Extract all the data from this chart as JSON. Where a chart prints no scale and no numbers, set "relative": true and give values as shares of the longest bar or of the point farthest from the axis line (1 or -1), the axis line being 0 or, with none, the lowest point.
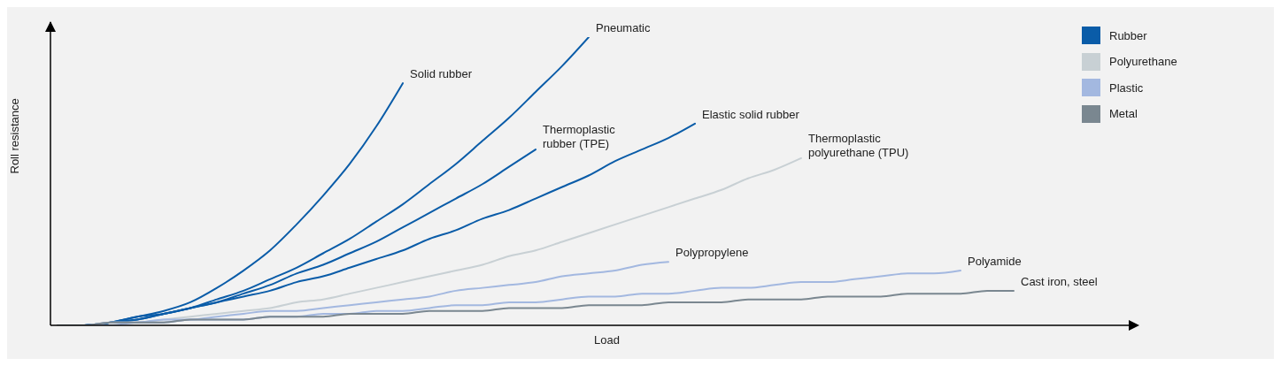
{
  "chart_data": {
    "type": "line",
    "relative": true,
    "xlabel": "Load",
    "ylabel": "Roll resistance",
    "categories": [
      null,
      null,
      null,
      null,
      null,
      null,
      null,
      null,
      null,
      null,
      null,
      null,
      null,
      null,
      null,
      null,
      null,
      null,
      null,
      null,
      null,
      null,
      null,
      null,
      null,
      null,
      null,
      null,
      null,
      null,
      null,
      null,
      null,
      null,
      null,
      null,
      null,
      null,
      null,
      null,
      null
    ],
    "series": [
      {
        "name": "Solid rubber",
        "color": "#0a5ca8",
        "values": [
          0,
          0,
          0.01,
          0.03,
          0.05,
          0.08,
          0.13,
          0.19,
          0.26,
          0.35,
          0.45,
          0.56,
          0.69,
          0.84,
          null,
          null,
          null,
          null,
          null,
          null,
          null,
          null,
          null,
          null,
          null,
          null,
          null,
          null,
          null,
          null,
          null,
          null,
          null,
          null,
          null,
          null,
          null,
          null,
          null,
          null,
          null
        ]
      },
      {
        "name": "Pneumatic",
        "color": "#0a5ca8",
        "values": [
          0,
          0,
          0.01,
          0.02,
          0.04,
          0.06,
          0.09,
          0.12,
          0.16,
          0.2,
          0.25,
          0.3,
          0.36,
          0.42,
          0.49,
          0.56,
          0.64,
          0.72,
          0.81,
          0.9,
          1,
          null,
          null,
          null,
          null,
          null,
          null,
          null,
          null,
          null,
          null,
          null,
          null,
          null,
          null,
          null,
          null,
          null,
          null,
          null,
          null
        ]
      },
      {
        "name": "Thermoplastic rubber (TPE)",
        "color": "#0a5ca8",
        "values": [
          0,
          0,
          0.01,
          0.02,
          0.04,
          0.06,
          0.08,
          0.11,
          0.14,
          0.18,
          0.21,
          0.25,
          0.29,
          0.34,
          0.39,
          0.44,
          0.49,
          0.55,
          0.61,
          null,
          null,
          null,
          null,
          null,
          null,
          null,
          null,
          null,
          null,
          null,
          null,
          null,
          null,
          null,
          null,
          null,
          null,
          null,
          null,
          null,
          null
        ]
      },
      {
        "name": "Elastic solid rubber",
        "color": "#0a5ca8",
        "values": [
          0,
          0,
          0.01,
          0.03,
          0.04,
          0.06,
          0.08,
          0.1,
          0.12,
          0.15,
          0.17,
          0.2,
          0.23,
          0.26,
          0.3,
          0.33,
          0.37,
          0.4,
          0.44,
          0.48,
          0.52,
          0.57,
          0.61,
          0.65,
          0.7,
          null,
          null,
          null,
          null,
          null,
          null,
          null,
          null,
          null,
          null,
          null,
          null,
          null,
          null,
          null,
          null
        ]
      },
      {
        "name": "Thermoplastic polyurethane (TPU)",
        "color": "#c8d0d4",
        "values": [
          0,
          0,
          0.01,
          0.01,
          0.02,
          0.03,
          0.04,
          0.05,
          0.06,
          0.08,
          0.09,
          0.11,
          0.13,
          0.15,
          0.17,
          0.19,
          0.21,
          0.24,
          0.26,
          0.29,
          0.32,
          0.35,
          0.38,
          0.41,
          0.44,
          0.47,
          0.51,
          0.54,
          0.58,
          null,
          null,
          null,
          null,
          null,
          null,
          null,
          null,
          null,
          null,
          null,
          null
        ]
      },
      {
        "name": "Polypropylene",
        "color": "#a3b8e0",
        "values": [
          0,
          0,
          0.01,
          0.01,
          0.02,
          0.02,
          0.03,
          0.04,
          0.05,
          0.05,
          0.06,
          0.07,
          0.08,
          0.09,
          0.1,
          0.12,
          0.13,
          0.14,
          0.15,
          0.17,
          0.18,
          0.19,
          0.21,
          0.22,
          null,
          null,
          null,
          null,
          null,
          null,
          null,
          null,
          null,
          null,
          null,
          null,
          null,
          null,
          null,
          null,
          null
        ]
      },
      {
        "name": "Polyamide",
        "color": "#a3b8e0",
        "values": [
          0,
          0,
          0,
          0.01,
          0.01,
          0.02,
          0.02,
          0.02,
          0.03,
          0.03,
          0.04,
          0.04,
          0.05,
          0.05,
          0.06,
          0.07,
          0.07,
          0.08,
          0.08,
          0.09,
          0.1,
          0.1,
          0.11,
          0.11,
          0.12,
          0.13,
          0.13,
          0.14,
          0.15,
          0.15,
          0.16,
          0.17,
          0.18,
          0.18,
          0.19,
          null,
          null,
          null,
          null,
          null,
          null
        ]
      },
      {
        "name": "Cast iron, steel",
        "color": "#7a8790",
        "values": [
          0,
          0,
          0.01,
          0.01,
          0.01,
          0.02,
          0.02,
          0.02,
          0.03,
          0.03,
          0.03,
          0.04,
          0.04,
          0.04,
          0.05,
          0.05,
          0.05,
          0.06,
          0.06,
          0.06,
          0.07,
          0.07,
          0.07,
          0.08,
          0.08,
          0.08,
          0.09,
          0.09,
          0.09,
          0.1,
          0.1,
          0.1,
          0.11,
          0.11,
          0.11,
          0.12,
          0.12,
          null,
          null,
          null,
          null
        ]
      }
    ],
    "annotations": [
      "Rubber",
      "Polyurethane",
      "Plastic",
      "Metal"
    ]
  }
}
